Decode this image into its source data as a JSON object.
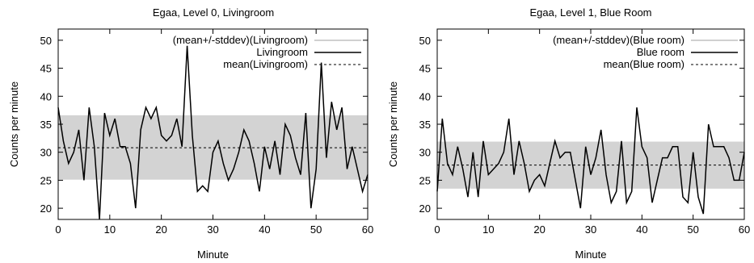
{
  "chart_data": [
    {
      "type": "line",
      "title": "Egaa, Level 0, Livingroom",
      "xlabel": "Minute",
      "ylabel": "Counts per minute",
      "xlim": [
        0,
        60
      ],
      "ylim": [
        18,
        52
      ],
      "xticks": [
        0,
        10,
        20,
        30,
        40,
        50,
        60
      ],
      "yticks": [
        20,
        25,
        30,
        35,
        40,
        45,
        50
      ],
      "legend_position": "top-right",
      "band": {
        "name": "(mean+/-stddev)(Livingroom)",
        "low": 25.1,
        "high": 36.6,
        "color": "#d3d3d3"
      },
      "mean": {
        "name": "mean(Livingroom)",
        "value": 30.8
      },
      "series": [
        {
          "name": "Livingroom",
          "x": [
            0,
            1,
            2,
            3,
            4,
            5,
            6,
            7,
            8,
            9,
            10,
            11,
            12,
            13,
            14,
            15,
            16,
            17,
            18,
            19,
            20,
            21,
            22,
            23,
            24,
            25,
            26,
            27,
            28,
            29,
            30,
            31,
            32,
            33,
            34,
            35,
            36,
            37,
            38,
            39,
            40,
            41,
            42,
            43,
            44,
            45,
            46,
            47,
            48,
            49,
            50,
            51,
            52,
            53,
            54,
            55,
            56,
            57,
            58,
            59,
            60
          ],
          "values": [
            38,
            32,
            28,
            30,
            34,
            25,
            38,
            31,
            18,
            37,
            33,
            36,
            31,
            31,
            28,
            20,
            34,
            38,
            36,
            38,
            33,
            32,
            33,
            36,
            31,
            49,
            33,
            23,
            24,
            23,
            30,
            32,
            28,
            25,
            27,
            30,
            34,
            32,
            28,
            23,
            31,
            27,
            32,
            26,
            35,
            33,
            29,
            26,
            37,
            20,
            27,
            46,
            29,
            39,
            34,
            38,
            27,
            31,
            27,
            23,
            26
          ]
        }
      ]
    },
    {
      "type": "line",
      "title": "Egaa, Level 1, Blue Room",
      "xlabel": "Minute",
      "ylabel": "Counts per minute",
      "xlim": [
        0,
        60
      ],
      "ylim": [
        18,
        52
      ],
      "xticks": [
        0,
        10,
        20,
        30,
        40,
        50,
        60
      ],
      "yticks": [
        20,
        25,
        30,
        35,
        40,
        45,
        50
      ],
      "legend_position": "top-right",
      "band": {
        "name": "(mean+/-stddev)(Blue room)",
        "low": 23.5,
        "high": 31.9,
        "color": "#d3d3d3"
      },
      "mean": {
        "name": "mean(Blue room)",
        "value": 27.7
      },
      "series": [
        {
          "name": "Blue room",
          "x": [
            0,
            1,
            2,
            3,
            4,
            5,
            6,
            7,
            8,
            9,
            10,
            11,
            12,
            13,
            14,
            15,
            16,
            17,
            18,
            19,
            20,
            21,
            22,
            23,
            24,
            25,
            26,
            27,
            28,
            29,
            30,
            31,
            32,
            33,
            34,
            35,
            36,
            37,
            38,
            39,
            40,
            41,
            42,
            43,
            44,
            45,
            46,
            47,
            48,
            49,
            50,
            51,
            52,
            53,
            54,
            55,
            56,
            57,
            58,
            59,
            60
          ],
          "values": [
            23,
            36,
            28,
            26,
            31,
            27,
            22,
            30,
            22,
            32,
            26,
            27,
            28,
            30,
            36,
            26,
            32,
            28,
            23,
            25,
            26,
            24,
            28,
            32,
            29,
            30,
            30,
            25,
            20,
            31,
            26,
            29,
            34,
            26,
            21,
            23,
            32,
            21,
            23,
            38,
            31,
            29,
            21,
            25,
            29,
            29,
            31,
            31,
            22,
            21,
            30,
            22,
            19,
            35,
            31,
            31,
            31,
            29,
            25,
            25,
            30
          ]
        }
      ]
    }
  ]
}
